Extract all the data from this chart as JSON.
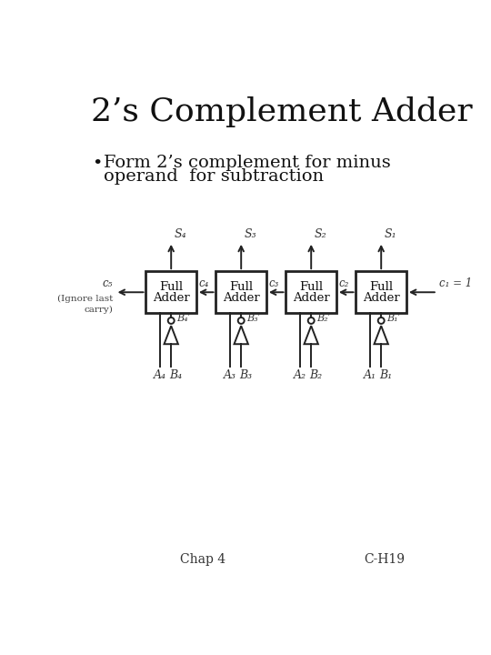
{
  "title": "2’s Complement Adder",
  "bullet_line1": "Form 2’s complement for minus",
  "bullet_line2": "operand  for subtraction",
  "footer_left": "Chap 4",
  "footer_right": "C-H19",
  "bg_color": "#ffffff",
  "adder_labels": [
    "Full\nAdder",
    "Full\nAdder",
    "Full\nAdder",
    "Full\nAdder"
  ],
  "S_labels": [
    "S₄",
    "S₃",
    "S₂",
    "S₁"
  ],
  "A_labels": [
    "A₄",
    "A₃",
    "A₂",
    "A₁"
  ],
  "B_labels": [
    "B₄",
    "B₃",
    "B₂",
    "B₁"
  ],
  "Bprime_labels": [
    "B₄′",
    "B₃′",
    "B₂′",
    "B₁′"
  ],
  "carry_out": "c₅",
  "carry_labels": [
    "c₄",
    "c₃",
    "c₂"
  ],
  "carry_in": "c₁ = 1",
  "ignore_text": "(Ignore last\ncarry)"
}
